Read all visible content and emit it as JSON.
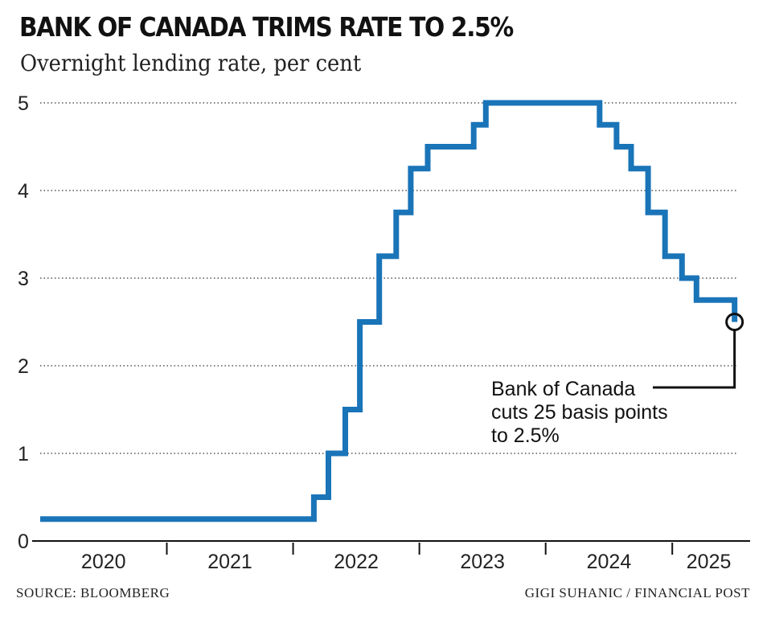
{
  "chart_data": {
    "type": "line",
    "step": true,
    "title": "BANK OF CANADA TRIMS RATE TO 2.5%",
    "subtitle": "Overnight lending rate, per cent",
    "xlabel": "",
    "ylabel": "",
    "ylim": [
      0,
      5
    ],
    "yticks": [
      0,
      1,
      2,
      3,
      4,
      5
    ],
    "xlim": [
      "2020-01-01",
      "2025-07-31"
    ],
    "year_labels": [
      "2020",
      "2021",
      "2022",
      "2023",
      "2024",
      "2025"
    ],
    "grid": "dotted horizontal",
    "line_color": "#1a74b8",
    "series": [
      {
        "x": [
          "2020-01-01",
          "2022-03-02",
          "2022-04-13",
          "2022-06-01",
          "2022-07-13",
          "2022-09-07",
          "2022-10-26",
          "2022-12-07",
          "2023-01-25",
          "2023-06-07",
          "2023-07-12",
          "2024-06-05",
          "2024-07-24",
          "2024-09-04",
          "2024-10-23",
          "2024-12-11",
          "2025-01-29",
          "2025-03-12",
          "2025-06-30"
        ],
        "values": [
          0.25,
          0.5,
          1.0,
          1.5,
          2.5,
          3.25,
          3.75,
          4.25,
          4.5,
          4.75,
          5.0,
          4.75,
          4.5,
          4.25,
          3.75,
          3.25,
          3.0,
          2.75,
          2.5
        ]
      }
    ],
    "annotation": {
      "lines": [
        "Bank of Canada",
        "cuts 25 basis points",
        "to 2.5%"
      ],
      "point": {
        "x": "2025-06-30",
        "y": 2.5
      }
    }
  },
  "footer": {
    "source": "SOURCE: BLOOMBERG",
    "credit": "GIGI SUHANIC / FINANCIAL POST"
  }
}
